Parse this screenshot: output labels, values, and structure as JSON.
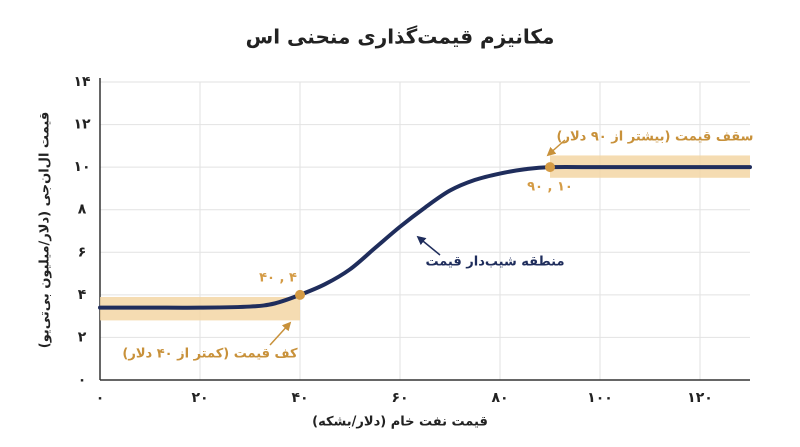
{
  "chart_data": {
    "type": "line",
    "title": "مکانیزم قیمت‌گذاری منحنی اس",
    "x_label": "قیمت نفت خام (دلار/بشکه)",
    "y_label": "قیمت ال‌ان‌جی (دلار/میلیون بی‌تی‌یو)",
    "xlim": [
      0,
      130
    ],
    "ylim": [
      0,
      14
    ],
    "xticks": [
      {
        "value": 0,
        "label": "۰"
      },
      {
        "value": 20,
        "label": "۲۰"
      },
      {
        "value": 40,
        "label": "۴۰"
      },
      {
        "value": 60,
        "label": "۶۰"
      },
      {
        "value": 80,
        "label": "۸۰"
      },
      {
        "value": 100,
        "label": "۱۰۰"
      },
      {
        "value": 120,
        "label": "۱۲۰"
      }
    ],
    "yticks": [
      {
        "value": 0,
        "label": "۰"
      },
      {
        "value": 2,
        "label": "۲"
      },
      {
        "value": 4,
        "label": "۴"
      },
      {
        "value": 6,
        "label": "۶"
      },
      {
        "value": 8,
        "label": "۸"
      },
      {
        "value": 10,
        "label": "۱۰"
      },
      {
        "value": 12,
        "label": "۱۲"
      },
      {
        "value": 14,
        "label": "۱۴"
      }
    ],
    "grid": true,
    "series": [
      {
        "color": "#1f2d5c",
        "x": [
          0,
          10,
          20,
          30,
          35,
          40,
          45,
          50,
          55,
          60,
          65,
          70,
          75,
          80,
          85,
          90,
          100,
          110,
          120,
          130
        ],
        "values": [
          3.4,
          3.4,
          3.4,
          3.45,
          3.6,
          4.0,
          4.5,
          5.2,
          6.2,
          7.2,
          8.1,
          8.9,
          9.4,
          9.7,
          9.9,
          10,
          10,
          10,
          10,
          10
        ]
      }
    ],
    "bands": [
      {
        "x": [
          0,
          40
        ],
        "y": [
          2.8,
          3.9
        ],
        "color": "#f3d6a4"
      },
      {
        "x": [
          90,
          130
        ],
        "y": [
          9.5,
          10.55
        ],
        "color": "#f3d6a4"
      }
    ],
    "points": [
      {
        "x": 40,
        "y": 4,
        "label": "۴۰ , ۴",
        "color": "#d49b45"
      },
      {
        "x": 90,
        "y": 10,
        "label": "۹۰ , ۱۰",
        "color": "#d49b45"
      }
    ],
    "annotations": [
      {
        "text": "کف قیمت (کمتر از ۴۰ دلار)",
        "color": "#c8913a"
      },
      {
        "text": "سقف قیمت (بیشتر از ۹۰ دلار)",
        "color": "#c8913a"
      },
      {
        "text": "منطقه شیب‌دار قیمت",
        "color": "#1f2d5c"
      }
    ]
  }
}
